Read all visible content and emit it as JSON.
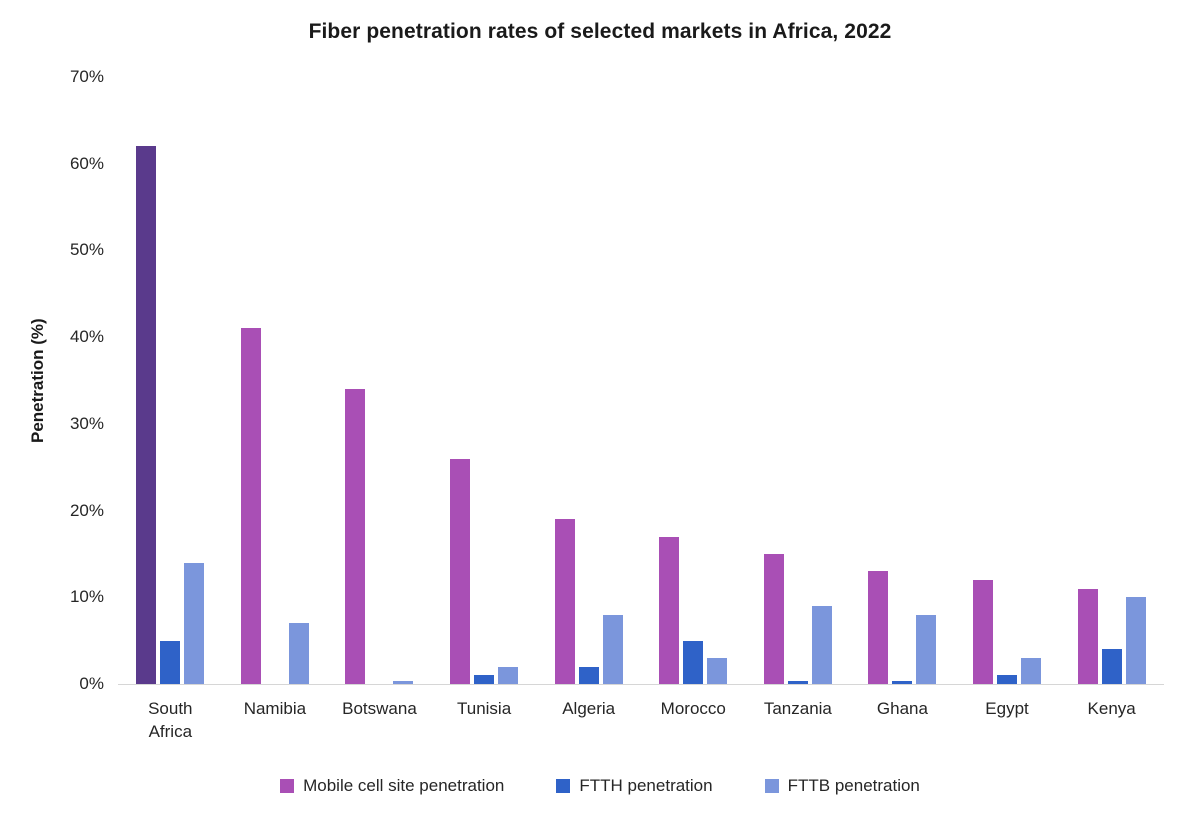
{
  "page": {
    "background": "#ffffff"
  },
  "chart_data": {
    "type": "bar",
    "title": "Fiber penetration rates of selected markets in Africa, 2022",
    "ylabel": "Penetration (%)",
    "xlabel": "",
    "ylim": [
      0,
      70
    ],
    "y_tick_step": 10,
    "y_ticks": [
      "0%",
      "10%",
      "20%",
      "30%",
      "40%",
      "50%",
      "60%",
      "70%"
    ],
    "grid": false,
    "legend_position": "bottom",
    "categories": [
      "South Africa",
      "Namibia",
      "Botswana",
      "Tunisia",
      "Algeria",
      "Morocco",
      "Tanzania",
      "Ghana",
      "Egypt",
      "Kenya"
    ],
    "series": [
      {
        "name": "Mobile cell site penetration",
        "color": "#a94fb5",
        "values": [
          62,
          41,
          34,
          26,
          19,
          17,
          15,
          13,
          12,
          11
        ]
      },
      {
        "name": "FTTH penetration",
        "color": "#2f62c8",
        "values": [
          5,
          0,
          0,
          1,
          2,
          5,
          0.3,
          0.3,
          1,
          4
        ]
      },
      {
        "name": "FTTB penetration",
        "color": "#7b96dc",
        "values": [
          14,
          7,
          0.3,
          2,
          8,
          3,
          9,
          8,
          3,
          10
        ]
      }
    ],
    "highlight": {
      "series_index": 0,
      "category": "South Africa",
      "color": "#5a3a8c"
    },
    "colors": {
      "axis_line": "#d6d6d6",
      "text": "#262626",
      "title_text": "#1a1a1a"
    }
  }
}
